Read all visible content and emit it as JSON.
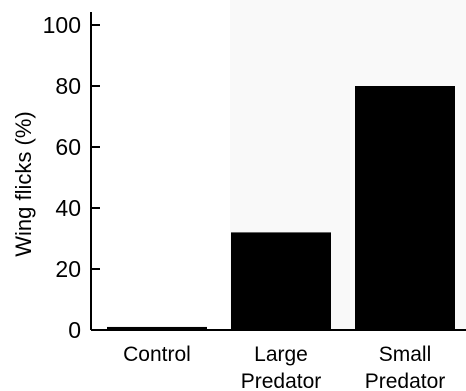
{
  "chart_data": {
    "type": "bar",
    "categories": [
      [
        "Control"
      ],
      [
        "Large",
        "Predator"
      ],
      [
        "Small",
        "Predator"
      ]
    ],
    "values": [
      1,
      32,
      80
    ],
    "title": "",
    "xlabel": "",
    "ylabel": "Wing flicks (%)",
    "ylim": [
      0,
      100
    ],
    "yticks": [
      0,
      20,
      40,
      60,
      80,
      100
    ],
    "grid": false,
    "bar_color": "#000000",
    "axis_color": "#000000"
  }
}
